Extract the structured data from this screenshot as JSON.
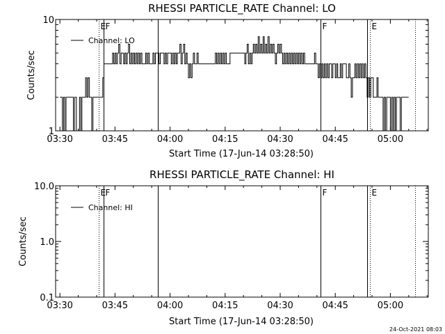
{
  "footer": "24-Oct-2021 08:03",
  "chart_data": [
    {
      "type": "line",
      "title": "RHESSI PARTICLE_RATE Channel: LO",
      "xlabel": "Start Time (17-Jun-14 03:28:50)",
      "ylabel": "Counts/sec",
      "y_scale": "log",
      "ylim": [
        1,
        10
      ],
      "y_ticks": [
        "1",
        "10"
      ],
      "xlim": [
        "03:28:50",
        "05:10:20"
      ],
      "x_ticks": [
        "03:30",
        "03:45",
        "04:00",
        "04:15",
        "04:30",
        "04:45",
        "05:00"
      ],
      "grid": false,
      "legend_position": "top-left",
      "legend": [
        "Channel: LO"
      ],
      "markers": [
        {
          "time": "03:40:30",
          "label": "E",
          "style": "dotted"
        },
        {
          "time": "03:41:50",
          "label": "F",
          "style": "solid"
        },
        {
          "time": "03:56:40",
          "label": "",
          "style": "solid"
        },
        {
          "time": "04:41:00",
          "label": "F",
          "style": "solid"
        },
        {
          "time": "04:53:40",
          "label": "",
          "style": "solid"
        },
        {
          "time": "04:54:30",
          "label": "E",
          "style": "dotted"
        },
        {
          "time": "05:06:40",
          "label": "",
          "style": "dotted"
        }
      ],
      "series": [
        {
          "name": "Channel: LO",
          "points": [
            [
              "03:30:00",
              2
            ],
            [
              "03:30:40",
              1
            ],
            [
              "03:31:00",
              2
            ],
            [
              "03:31:20",
              1
            ],
            [
              "03:31:40",
              2
            ],
            [
              "03:33:20",
              2
            ],
            [
              "03:33:40",
              1
            ],
            [
              "03:34:00",
              2
            ],
            [
              "03:34:30",
              1
            ],
            [
              "03:35:00",
              1
            ],
            [
              "03:35:20",
              2
            ],
            [
              "03:35:40",
              1
            ],
            [
              "03:36:00",
              2
            ],
            [
              "03:36:40",
              2
            ],
            [
              "03:37:00",
              3
            ],
            [
              "03:37:20",
              2
            ],
            [
              "03:37:40",
              3
            ],
            [
              "03:38:00",
              2
            ],
            [
              "03:38:20",
              2
            ],
            [
              "03:38:40",
              1
            ],
            [
              "03:39:00",
              2
            ],
            [
              "03:40:30",
              2
            ],
            [
              "03:41:20",
              2
            ],
            [
              "03:41:40",
              3
            ],
            [
              "03:42:00",
              4
            ],
            [
              "03:44:00",
              4
            ],
            [
              "03:44:20",
              5
            ],
            [
              "03:44:40",
              4
            ],
            [
              "03:45:00",
              5
            ],
            [
              "03:45:20",
              4
            ],
            [
              "03:45:40",
              5
            ],
            [
              "03:46:00",
              6
            ],
            [
              "03:46:20",
              4
            ],
            [
              "03:46:40",
              5
            ],
            [
              "03:47:00",
              5
            ],
            [
              "03:47:20",
              4
            ],
            [
              "03:47:40",
              5
            ],
            [
              "03:48:00",
              4
            ],
            [
              "03:48:20",
              5
            ],
            [
              "03:48:40",
              6
            ],
            [
              "03:49:00",
              4
            ],
            [
              "03:49:20",
              5
            ],
            [
              "03:49:40",
              4
            ],
            [
              "03:50:00",
              5
            ],
            [
              "03:50:20",
              4
            ],
            [
              "03:50:40",
              5
            ],
            [
              "03:51:00",
              4
            ],
            [
              "03:51:20",
              5
            ],
            [
              "03:51:40",
              4
            ],
            [
              "03:52:00",
              5
            ],
            [
              "03:52:20",
              4
            ],
            [
              "03:53:00",
              4
            ],
            [
              "03:53:20",
              5
            ],
            [
              "03:53:40",
              4
            ],
            [
              "03:54:00",
              5
            ],
            [
              "03:54:20",
              4
            ],
            [
              "03:55:00",
              4
            ],
            [
              "03:55:20",
              5
            ],
            [
              "03:55:40",
              4
            ],
            [
              "03:56:00",
              5
            ],
            [
              "03:56:40",
              5
            ],
            [
              "03:57:00",
              4
            ],
            [
              "03:57:20",
              5
            ],
            [
              "03:58:00",
              5
            ],
            [
              "03:58:20",
              4
            ],
            [
              "03:58:40",
              5
            ],
            [
              "03:59:00",
              4
            ],
            [
              "03:59:20",
              5
            ],
            [
              "04:00:00",
              5
            ],
            [
              "04:00:20",
              4
            ],
            [
              "04:00:40",
              5
            ],
            [
              "04:01:00",
              4
            ],
            [
              "04:01:20",
              5
            ],
            [
              "04:01:40",
              4
            ],
            [
              "04:02:00",
              5
            ],
            [
              "04:02:20",
              5
            ],
            [
              "04:02:40",
              6
            ],
            [
              "04:03:00",
              4
            ],
            [
              "04:03:20",
              5
            ],
            [
              "04:03:40",
              6
            ],
            [
              "04:04:00",
              4
            ],
            [
              "04:04:20",
              5
            ],
            [
              "04:04:40",
              4
            ],
            [
              "04:05:00",
              3
            ],
            [
              "04:05:20",
              4
            ],
            [
              "04:05:40",
              3
            ],
            [
              "04:06:00",
              4
            ],
            [
              "04:06:20",
              5
            ],
            [
              "04:06:40",
              4
            ],
            [
              "04:07:00",
              4
            ],
            [
              "04:07:20",
              5
            ],
            [
              "04:07:40",
              4
            ],
            [
              "04:08:00",
              4
            ],
            [
              "04:12:00",
              4
            ],
            [
              "04:12:20",
              5
            ],
            [
              "04:12:40",
              4
            ],
            [
              "04:13:00",
              5
            ],
            [
              "04:13:20",
              4
            ],
            [
              "04:13:40",
              5
            ],
            [
              "04:14:00",
              4
            ],
            [
              "04:14:20",
              5
            ],
            [
              "04:14:40",
              4
            ],
            [
              "04:15:00",
              5
            ],
            [
              "04:15:20",
              4
            ],
            [
              "04:16:00",
              4
            ],
            [
              "04:16:20",
              5
            ],
            [
              "04:20:00",
              5
            ],
            [
              "04:20:20",
              4
            ],
            [
              "04:20:40",
              5
            ],
            [
              "04:21:00",
              6
            ],
            [
              "04:21:20",
              4
            ],
            [
              "04:21:40",
              5
            ],
            [
              "04:22:00",
              4
            ],
            [
              "04:22:20",
              5
            ],
            [
              "04:22:40",
              6
            ],
            [
              "04:23:00",
              5
            ],
            [
              "04:23:20",
              6
            ],
            [
              "04:23:40",
              5
            ],
            [
              "04:24:00",
              7
            ],
            [
              "04:24:20",
              5
            ],
            [
              "04:24:40",
              6
            ],
            [
              "04:25:00",
              5
            ],
            [
              "04:25:20",
              7
            ],
            [
              "04:25:40",
              5
            ],
            [
              "04:26:00",
              6
            ],
            [
              "04:26:20",
              5
            ],
            [
              "04:26:40",
              7
            ],
            [
              "04:27:00",
              5
            ],
            [
              "04:27:20",
              6
            ],
            [
              "04:27:40",
              5
            ],
            [
              "04:28:00",
              6
            ],
            [
              "04:28:20",
              5
            ],
            [
              "04:28:40",
              4
            ],
            [
              "04:29:00",
              5
            ],
            [
              "04:29:20",
              6
            ],
            [
              "04:29:40",
              5
            ],
            [
              "04:30:00",
              6
            ],
            [
              "04:30:20",
              5
            ],
            [
              "04:30:40",
              4
            ],
            [
              "04:31:00",
              5
            ],
            [
              "04:31:20",
              4
            ],
            [
              "04:31:40",
              5
            ],
            [
              "04:32:00",
              4
            ],
            [
              "04:32:20",
              5
            ],
            [
              "04:32:40",
              4
            ],
            [
              "04:33:00",
              5
            ],
            [
              "04:33:20",
              4
            ],
            [
              "04:33:40",
              5
            ],
            [
              "04:34:00",
              4
            ],
            [
              "04:34:20",
              5
            ],
            [
              "04:34:40",
              4
            ],
            [
              "04:35:00",
              5
            ],
            [
              "04:35:20",
              4
            ],
            [
              "04:35:40",
              5
            ],
            [
              "04:36:00",
              4
            ],
            [
              "04:36:20",
              5
            ],
            [
              "04:36:40",
              4
            ],
            [
              "04:39:00",
              4
            ],
            [
              "04:39:20",
              5
            ],
            [
              "04:39:40",
              4
            ],
            [
              "04:40:00",
              4
            ],
            [
              "04:40:20",
              3
            ],
            [
              "04:40:40",
              4
            ],
            [
              "04:41:00",
              3
            ],
            [
              "04:41:20",
              4
            ],
            [
              "04:41:40",
              3
            ],
            [
              "04:42:00",
              4
            ],
            [
              "04:42:20",
              3
            ],
            [
              "04:42:40",
              4
            ],
            [
              "04:43:00",
              3
            ],
            [
              "04:43:20",
              4
            ],
            [
              "04:43:40",
              4
            ],
            [
              "04:44:00",
              3
            ],
            [
              "04:44:20",
              4
            ],
            [
              "04:44:40",
              4
            ],
            [
              "04:45:00",
              3
            ],
            [
              "04:45:20",
              4
            ],
            [
              "04:45:40",
              3
            ],
            [
              "04:46:00",
              3
            ],
            [
              "04:46:20",
              4
            ],
            [
              "04:46:40",
              3
            ],
            [
              "04:47:00",
              4
            ],
            [
              "04:47:40",
              4
            ],
            [
              "04:48:00",
              3
            ],
            [
              "04:48:20",
              3
            ],
            [
              "04:48:40",
              4
            ],
            [
              "04:49:00",
              3
            ],
            [
              "04:49:20",
              2
            ],
            [
              "04:49:40",
              3
            ],
            [
              "04:50:00",
              3
            ],
            [
              "04:50:20",
              4
            ],
            [
              "04:50:40",
              3
            ],
            [
              "04:51:00",
              4
            ],
            [
              "04:51:20",
              3
            ],
            [
              "04:51:40",
              4
            ],
            [
              "04:52:00",
              3
            ],
            [
              "04:52:20",
              4
            ],
            [
              "04:52:40",
              3
            ],
            [
              "04:53:00",
              4
            ],
            [
              "04:53:20",
              3
            ],
            [
              "04:53:40",
              2
            ],
            [
              "04:54:00",
              3
            ],
            [
              "04:54:20",
              2
            ],
            [
              "04:54:40",
              3
            ],
            [
              "04:55:00",
              3
            ],
            [
              "04:55:20",
              2
            ],
            [
              "04:56:00",
              2
            ],
            [
              "04:56:20",
              3
            ],
            [
              "04:56:40",
              2
            ],
            [
              "04:57:40",
              2
            ],
            [
              "04:58:00",
              1
            ],
            [
              "04:58:20",
              2
            ],
            [
              "04:58:40",
              1
            ],
            [
              "04:59:00",
              2
            ],
            [
              "04:59:40",
              2
            ],
            [
              "05:00:00",
              1
            ],
            [
              "05:00:20",
              2
            ],
            [
              "05:00:40",
              1
            ],
            [
              "05:01:00",
              2
            ],
            [
              "05:01:20",
              1
            ],
            [
              "05:01:40",
              2
            ],
            [
              "05:02:20",
              2
            ],
            [
              "05:02:40",
              1
            ],
            [
              "05:03:00",
              2
            ],
            [
              "05:05:00",
              2
            ]
          ]
        }
      ]
    },
    {
      "type": "line",
      "title": "RHESSI PARTICLE_RATE Channel: HI",
      "xlabel": "Start Time (17-Jun-14 03:28:50)",
      "ylabel": "Counts/sec",
      "y_scale": "log",
      "ylim": [
        0.1,
        10
      ],
      "y_ticks": [
        "0.1",
        "1.0",
        "10.0"
      ],
      "xlim": [
        "03:28:50",
        "05:10:20"
      ],
      "x_ticks": [
        "03:30",
        "03:45",
        "04:00",
        "04:15",
        "04:30",
        "04:45",
        "05:00"
      ],
      "grid": false,
      "legend_position": "top-left",
      "legend": [
        "Channel: HI"
      ],
      "markers": [
        {
          "time": "03:40:30",
          "label": "E",
          "style": "dotted"
        },
        {
          "time": "03:41:50",
          "label": "F",
          "style": "solid"
        },
        {
          "time": "03:56:40",
          "label": "",
          "style": "solid"
        },
        {
          "time": "04:41:00",
          "label": "F",
          "style": "solid"
        },
        {
          "time": "04:53:40",
          "label": "",
          "style": "solid"
        },
        {
          "time": "04:54:30",
          "label": "E",
          "style": "dotted"
        },
        {
          "time": "05:06:40",
          "label": "",
          "style": "dotted"
        }
      ],
      "series": [
        {
          "name": "Channel: HI",
          "points": []
        }
      ]
    }
  ]
}
